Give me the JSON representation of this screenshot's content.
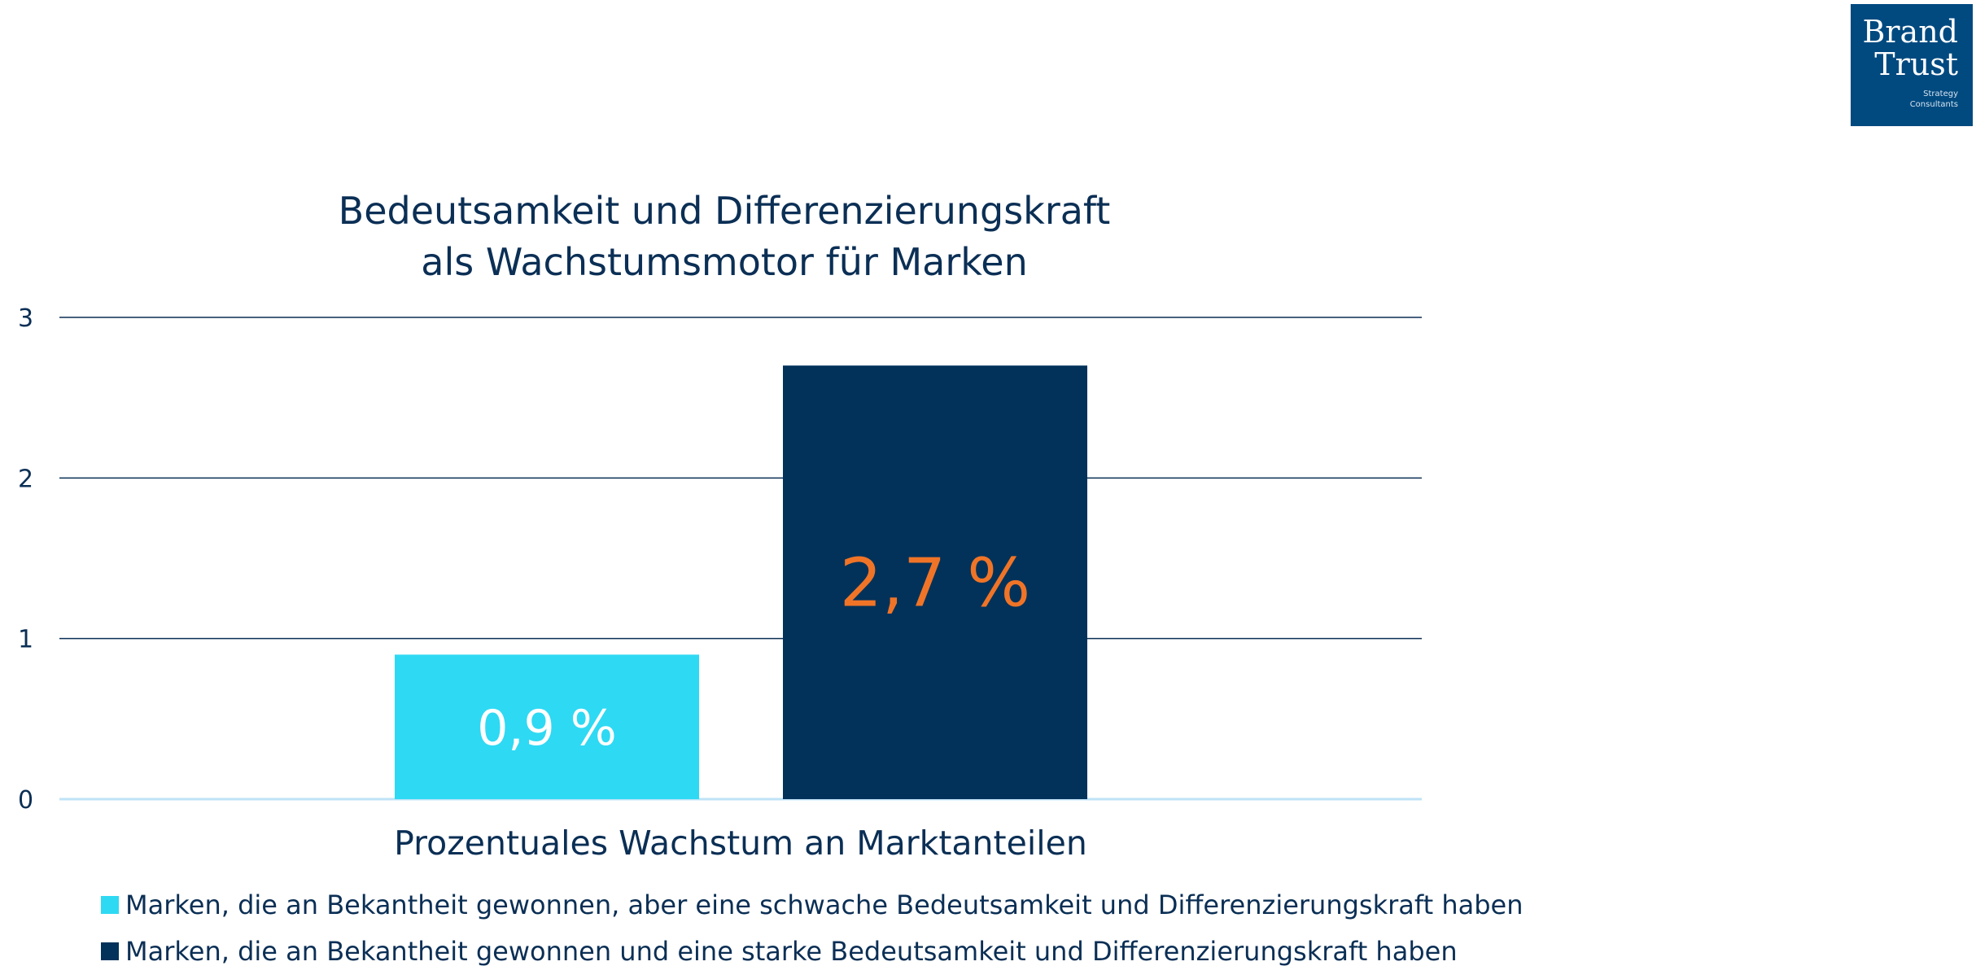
{
  "logo": {
    "line1": "Brand",
    "line2": "Trust",
    "tagline1": "Strategy",
    "tagline2": "Consultants",
    "color": "#004a80"
  },
  "chart_data": {
    "type": "bar",
    "title_line1": "Bedeutsamkeit und Differenzierungskraft",
    "title_line2": "als Wachstumsmotor für Marken",
    "xlabel": "Prozentuales Wachstum an Marktanteilen",
    "ylabel": "",
    "ylim": [
      0,
      3
    ],
    "yticks": [
      "0",
      "1",
      "2",
      "3"
    ],
    "grid": true,
    "legend_position": "bottom-left",
    "series": [
      {
        "name": "Marken, die an Bekantheit gewonnen, aber eine schwache Bedeutsamkeit und Differenzierungskraft haben",
        "value": 0.9,
        "label": "0,9 %",
        "color": "#2ed9f3",
        "label_color": "#ffffff"
      },
      {
        "name": "Marken, die an Bekantheit gewonnen und eine starke Bedeutsamkeit und Differenzierungskraft haben",
        "value": 2.7,
        "label": "2,7 %",
        "color": "#02325a",
        "label_color": "#f07427"
      }
    ]
  }
}
